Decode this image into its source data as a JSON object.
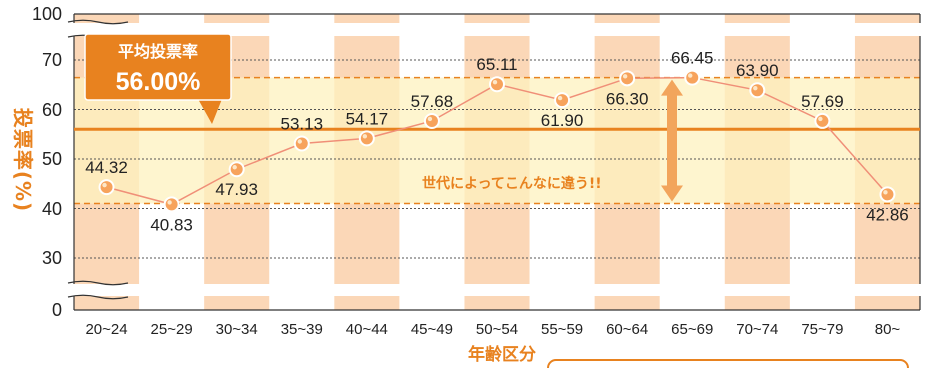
{
  "chart_data": {
    "type": "line",
    "categories": [
      "20~24",
      "25~29",
      "30~34",
      "35~39",
      "40~44",
      "45~49",
      "50~54",
      "55~59",
      "60~64",
      "65~69",
      "70~74",
      "75~79",
      "80~"
    ],
    "values": [
      44.32,
      40.83,
      47.93,
      53.13,
      54.17,
      57.68,
      65.11,
      61.9,
      66.3,
      66.45,
      63.9,
      57.69,
      42.86
    ],
    "value_labels": [
      "44.32",
      "40.83",
      "47.93",
      "53.13",
      "54.17",
      "57.68",
      "65.11",
      "61.90",
      "66.30",
      "66.45",
      "63.90",
      "57.69",
      "42.86"
    ],
    "y_ticks": [
      "0",
      "30",
      "40",
      "50",
      "60",
      "70",
      "100"
    ],
    "ylim": [
      25,
      75
    ],
    "y_axis_break": true,
    "xlabel": "年齢区分",
    "ylabel": "投票率(%)",
    "average": {
      "title": "平均投票率",
      "value": 56.0,
      "label": "56.00%"
    },
    "annotation": "世代によってこんなに違う!!",
    "band_range": [
      41,
      66.45
    ],
    "grid": true,
    "colors": {
      "accent": "#e8821f",
      "line": "#f08f78",
      "band": "#fdf1bf",
      "stripe": "#fbd7b7",
      "marker": "#f7a35c"
    }
  }
}
